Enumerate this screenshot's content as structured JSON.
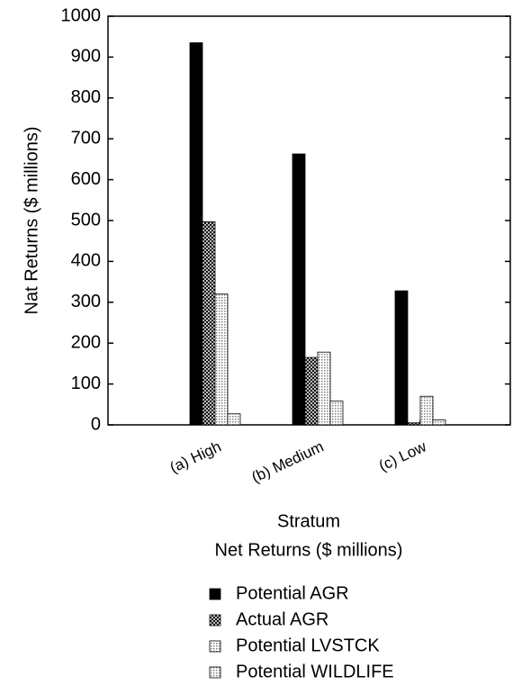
{
  "chart_data": {
    "type": "bar",
    "x_label": "Stratum",
    "y_label": "Nat Returns ($ millions)",
    "subtitle": "Net Returns ($ millions)",
    "categories": [
      "(a) High",
      "(b) Medium",
      "(c) Low"
    ],
    "series": [
      {
        "name": "Potential AGR",
        "color": "#000000",
        "pattern": "solid",
        "values": [
          935,
          663,
          328
        ]
      },
      {
        "name": "Actual AGR",
        "color": "#000000",
        "pattern": "crosshatch",
        "values": [
          497,
          165,
          5
        ]
      },
      {
        "name": "Potential LVSTCK",
        "color": "#b0b0b0",
        "pattern": "dots",
        "values": [
          320,
          178,
          70
        ]
      },
      {
        "name": "Potential WILDLIFE",
        "color": "#c8c8c8",
        "pattern": "dots",
        "values": [
          27,
          58,
          12
        ]
      }
    ],
    "ylim": [
      0,
      1000
    ],
    "yticks": [
      0,
      100,
      200,
      300,
      400,
      500,
      600,
      700,
      800,
      900,
      1000
    ]
  }
}
